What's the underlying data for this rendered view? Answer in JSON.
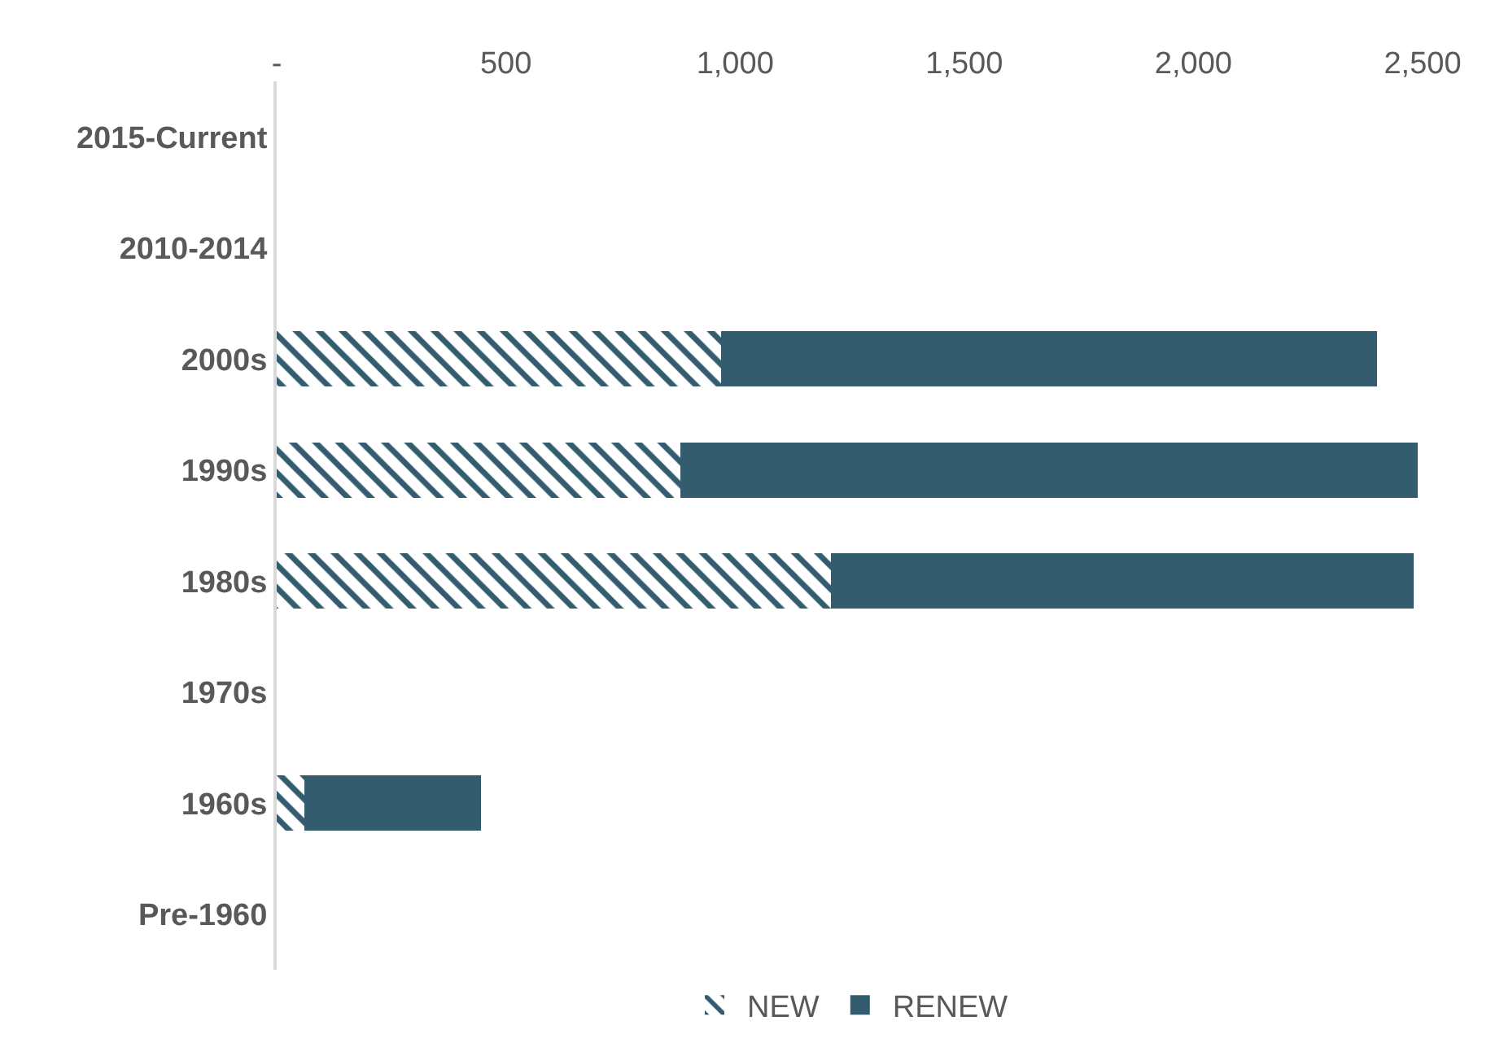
{
  "chart_data": {
    "type": "bar",
    "orientation": "horizontal",
    "stacked": true,
    "categories": [
      "2015-Current",
      "2010-2014",
      "2000s",
      "1990s",
      "1980s",
      "1970s",
      "1960s",
      "Pre-1960"
    ],
    "series": [
      {
        "name": "NEW",
        "color": "#335c6e",
        "values": [
          null,
          null,
          970,
          880,
          1210,
          null,
          60,
          null
        ]
      },
      {
        "name": "RENEW",
        "color": "#335c6e",
        "values": [
          null,
          null,
          1430,
          1610,
          1270,
          null,
          385,
          null
        ]
      }
    ],
    "xlim": [
      0,
      2500
    ],
    "xticks": [
      {
        "value": 0,
        "label": "-"
      },
      500,
      {
        "value": 1000,
        "label": "1,000"
      },
      {
        "value": 1500,
        "label": "1,500"
      },
      {
        "value": 2000,
        "label": "2,000"
      },
      {
        "value": 2500,
        "label": "2,500"
      }
    ],
    "grid": false,
    "legend": "bottom"
  }
}
